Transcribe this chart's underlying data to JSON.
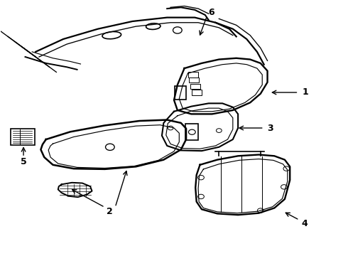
{
  "background_color": "#ffffff",
  "line_color": "#000000",
  "line_width": 1.2,
  "fig_width": 4.9,
  "fig_height": 3.6,
  "dpi": 100
}
